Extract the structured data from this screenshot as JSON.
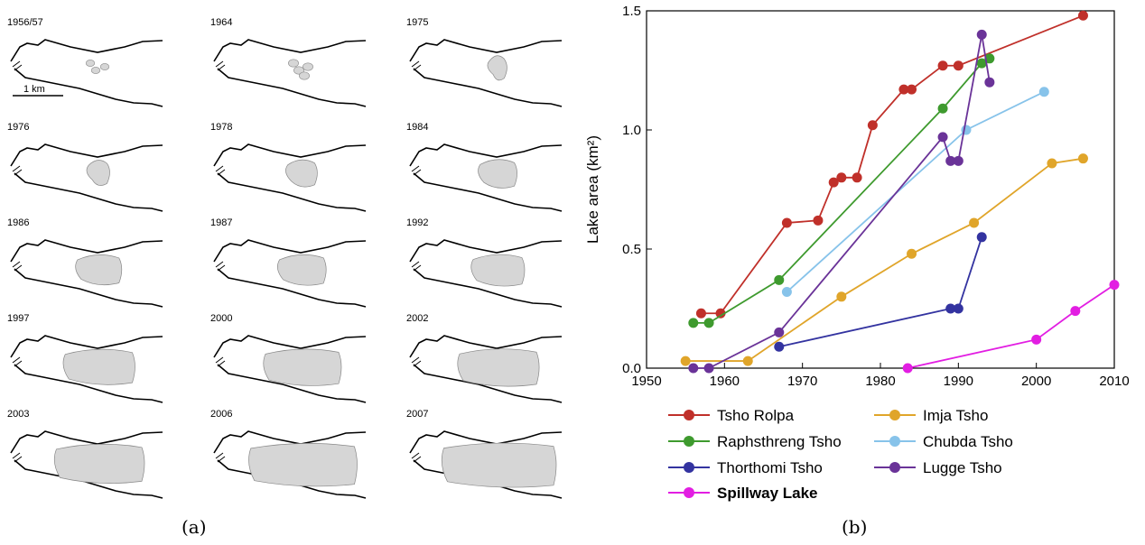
{
  "panel_a": {
    "caption": "(a)",
    "scale_label": "1 km",
    "maps": [
      {
        "year": "1956/57",
        "lake_fraction": 0.02
      },
      {
        "year": "1964",
        "lake_fraction": 0.04
      },
      {
        "year": "1975",
        "lake_fraction": 0.12
      },
      {
        "year": "1976",
        "lake_fraction": 0.15
      },
      {
        "year": "1978",
        "lake_fraction": 0.22
      },
      {
        "year": "1984",
        "lake_fraction": 0.28
      },
      {
        "year": "1986",
        "lake_fraction": 0.34
      },
      {
        "year": "1987",
        "lake_fraction": 0.36
      },
      {
        "year": "1992",
        "lake_fraction": 0.4
      },
      {
        "year": "1997",
        "lake_fraction": 0.55
      },
      {
        "year": "2000",
        "lake_fraction": 0.6
      },
      {
        "year": "2002",
        "lake_fraction": 0.63
      },
      {
        "year": "2003",
        "lake_fraction": 0.7
      },
      {
        "year": "2006",
        "lake_fraction": 0.85
      },
      {
        "year": "2007",
        "lake_fraction": 0.9
      }
    ]
  },
  "panel_b": {
    "caption": "(b)"
  },
  "chart_data": {
    "type": "line",
    "title": "",
    "xlabel": "",
    "ylabel": "Lake area (km²)",
    "xlim": [
      1950,
      2010
    ],
    "ylim": [
      0,
      1.5
    ],
    "xticks": [
      1950,
      1960,
      1970,
      1980,
      1990,
      2000,
      2010
    ],
    "yticks": [
      0.0,
      0.5,
      1.0,
      1.5
    ],
    "ytick_labels": [
      "0.0",
      "0.5",
      "1.0",
      "1.5"
    ],
    "grid": false,
    "legend_position": "below",
    "series": [
      {
        "name": "Tsho Rolpa",
        "color": "#c0302a",
        "x": [
          1957,
          1959.5,
          1968,
          1972,
          1974,
          1975,
          1977,
          1979,
          1983,
          1984,
          1988,
          1990,
          2006
        ],
        "y": [
          0.23,
          0.23,
          0.61,
          0.62,
          0.78,
          0.8,
          0.8,
          1.02,
          1.17,
          1.17,
          1.27,
          1.27,
          1.48
        ]
      },
      {
        "name": "Raphsthreng Tsho",
        "color": "#3e9a2e",
        "x": [
          1956,
          1958,
          1967,
          1988,
          1993,
          1994
        ],
        "y": [
          0.19,
          0.19,
          0.37,
          1.09,
          1.28,
          1.3
        ]
      },
      {
        "name": "Thorthomi Tsho",
        "color": "#3333a0",
        "x": [
          1967,
          1989,
          1990,
          1993
        ],
        "y": [
          0.09,
          0.25,
          0.25,
          0.55
        ]
      },
      {
        "name": "Spillway Lake",
        "color": "#e21ee2",
        "bold": true,
        "x": [
          1983.5,
          2000,
          2005,
          2010
        ],
        "y": [
          0.0,
          0.12,
          0.24,
          0.35
        ]
      },
      {
        "name": "Imja Tsho",
        "color": "#e0a52a",
        "x": [
          1955,
          1963,
          1975,
          1984,
          1992,
          2002,
          2006
        ],
        "y": [
          0.03,
          0.03,
          0.3,
          0.48,
          0.61,
          0.86,
          0.88
        ]
      },
      {
        "name": "Chubda Tsho",
        "color": "#87c3ea",
        "x": [
          1968,
          1991,
          2001
        ],
        "y": [
          0.32,
          1.0,
          1.16
        ]
      },
      {
        "name": "Lugge Tsho",
        "color": "#6a3398",
        "x": [
          1956,
          1958,
          1967,
          1988,
          1989,
          1990,
          1993,
          1994
        ],
        "y": [
          0.0,
          0.0,
          0.15,
          0.97,
          0.87,
          0.87,
          1.4,
          1.2
        ]
      }
    ]
  }
}
